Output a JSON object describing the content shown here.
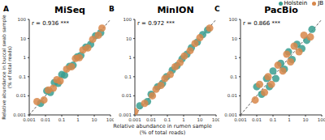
{
  "chart_data": [
    {
      "type": "scatter",
      "title": "MiSeq",
      "annotations": [
        "A",
        "r = 0.936 ***"
      ],
      "ylabel": "Relative abundance in buccal swab sample\n(% of total reads)",
      "log": true,
      "grid": false,
      "xlim": [
        0.001,
        100
      ],
      "ylim": [
        0.001,
        100
      ],
      "xticks": [
        0.001,
        0.01,
        0.1,
        1,
        10,
        100
      ],
      "yticks": [
        0.001,
        0.01,
        0.1,
        1,
        10,
        100
      ],
      "series": [
        {
          "name": "Holstein",
          "color": "#3a9e8f",
          "x": [
            0.005,
            0.012,
            0.02,
            0.035,
            0.06,
            0.1,
            0.15,
            0.3,
            0.5,
            0.9,
            1.5,
            3,
            6,
            12,
            25
          ],
          "values": [
            0.004,
            0.018,
            0.015,
            0.05,
            0.045,
            0.13,
            0.12,
            0.35,
            0.4,
            1.1,
            1.3,
            3.5,
            5,
            14,
            20
          ]
        },
        {
          "name": "JB",
          "color": "#d8874a",
          "x": [
            0.003,
            0.008,
            0.015,
            0.03,
            0.05,
            0.08,
            0.2,
            0.4,
            0.7,
            1.2,
            2,
            4,
            8,
            18,
            30
          ],
          "values": [
            0.005,
            0.006,
            0.02,
            0.025,
            0.07,
            0.06,
            0.25,
            0.33,
            0.9,
            1,
            2.5,
            3.2,
            9,
            15,
            35
          ]
        }
      ]
    },
    {
      "type": "scatter",
      "title": "MinION",
      "annotations": [
        "B",
        "r = 0.972 ***"
      ],
      "xlabel": "Relative abundance in rumen sample\n(% of total reads)",
      "log": true,
      "grid": false,
      "xlim": [
        0.001,
        100
      ],
      "ylim": [
        0.001,
        100
      ],
      "xticks": [
        0.001,
        0.01,
        0.1,
        1,
        10,
        100
      ],
      "yticks": [
        0.001,
        0.01,
        0.1,
        1,
        10,
        100
      ],
      "series": [
        {
          "name": "Holstein",
          "color": "#3a9e8f",
          "x": [
            0.002,
            0.006,
            0.01,
            0.025,
            0.05,
            0.09,
            0.2,
            0.4,
            0.8,
            1.6,
            3,
            7,
            15,
            30
          ],
          "values": [
            0.003,
            0.005,
            0.012,
            0.03,
            0.045,
            0.1,
            0.22,
            0.38,
            0.85,
            1.5,
            3.3,
            6.5,
            16,
            28
          ]
        },
        {
          "name": "JB",
          "color": "#d8874a",
          "x": [
            0.001,
            0.004,
            0.012,
            0.02,
            0.04,
            0.07,
            0.15,
            0.3,
            0.6,
            1.1,
            2.5,
            5,
            10,
            40
          ],
          "values": [
            0.0015,
            0.004,
            0.01,
            0.022,
            0.035,
            0.08,
            0.13,
            0.33,
            0.55,
            1.2,
            2.3,
            5.5,
            11,
            35
          ]
        }
      ]
    },
    {
      "type": "scatter",
      "title": "PacBio",
      "annotations": [
        "C",
        "r = 0.866 ***"
      ],
      "log": true,
      "grid": false,
      "legend": "top-right",
      "xlim": [
        0.001,
        100
      ],
      "ylim": [
        0.001,
        100
      ],
      "xticks": [
        0.001,
        0.01,
        0.1,
        1,
        10,
        100
      ],
      "yticks": [
        0.001,
        0.01,
        0.1,
        1,
        10,
        100
      ],
      "series": [
        {
          "name": "Holstein",
          "color": "#3a9e8f",
          "x": [
            0.01,
            0.02,
            0.04,
            0.06,
            0.1,
            0.15,
            0.3,
            0.5,
            0.9,
            1.5,
            3,
            6,
            12,
            25
          ],
          "values": [
            0.03,
            0.012,
            0.08,
            0.03,
            0.2,
            0.08,
            0.5,
            0.25,
            2,
            0.8,
            5,
            3,
            8,
            30
          ]
        },
        {
          "name": "JB",
          "color": "#d8874a",
          "x": [
            0.008,
            0.015,
            0.03,
            0.05,
            0.08,
            0.2,
            0.4,
            0.7,
            1.2,
            2,
            4,
            8,
            20
          ],
          "values": [
            0.006,
            0.04,
            0.015,
            0.1,
            0.04,
            0.4,
            0.2,
            1.5,
            0.6,
            4,
            2,
            15,
            12
          ]
        }
      ]
    }
  ]
}
